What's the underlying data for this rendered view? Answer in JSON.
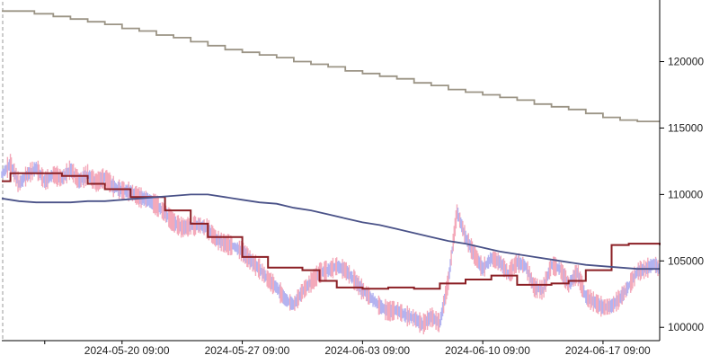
{
  "chart_data": {
    "type": "line",
    "x_tick_labels": [
      "2024-05-20 09:00",
      "2024-05-27 09:00",
      "2024-06-03 09:00",
      "2024-06-10 09:00",
      "2024-06-17 09:00"
    ],
    "y_tick_labels": [
      "100000",
      "105000",
      "110000",
      "115000",
      "120000"
    ],
    "x_tick_days": [
      7,
      14,
      21,
      28,
      35
    ],
    "x_unlabeled_tick_days": [
      2.5
    ],
    "y_ticks": [
      100000,
      105000,
      110000,
      115000,
      120000
    ],
    "xlim_days": [
      0,
      38.3
    ],
    "ylim": [
      99000,
      124500
    ],
    "grid": false,
    "legend": "none",
    "colors": {
      "price_up": "#f4a9ba",
      "price_down": "#b3b3f0",
      "upper_step": "#9b9485",
      "red_step": "#8b1f24",
      "blue_line": "#4a5288",
      "axis": "#000000",
      "start_marker": "#999999"
    },
    "series": [
      {
        "style": "step",
        "color_key": "upper_step",
        "points": [
          [
            0,
            123800
          ],
          [
            1,
            123800
          ],
          [
            1.9,
            123600
          ],
          [
            3,
            123400
          ],
          [
            4,
            123200
          ],
          [
            5,
            123000
          ],
          [
            6,
            122800
          ],
          [
            7,
            122500
          ],
          [
            8,
            122300
          ],
          [
            9,
            122000
          ],
          [
            10,
            121800
          ],
          [
            11,
            121500
          ],
          [
            12,
            121200
          ],
          [
            13,
            120900
          ],
          [
            14,
            120700
          ],
          [
            15,
            120500
          ],
          [
            16,
            120300
          ],
          [
            17,
            120000
          ],
          [
            18,
            119800
          ],
          [
            19,
            119600
          ],
          [
            20,
            119300
          ],
          [
            21,
            119100
          ],
          [
            22,
            118900
          ],
          [
            23,
            118700
          ],
          [
            24,
            118400
          ],
          [
            25,
            118200
          ],
          [
            26,
            117900
          ],
          [
            27,
            117700
          ],
          [
            28,
            117500
          ],
          [
            29,
            117300
          ],
          [
            30,
            117100
          ],
          [
            31,
            116800
          ],
          [
            32,
            116600
          ],
          [
            33,
            116400
          ],
          [
            34,
            116100
          ],
          [
            35,
            115800
          ],
          [
            36,
            115600
          ],
          [
            37,
            115500
          ],
          [
            38.3,
            115500
          ]
        ]
      },
      {
        "style": "step",
        "color_key": "red_step",
        "points": [
          [
            0,
            111000
          ],
          [
            0.5,
            111600
          ],
          [
            2,
            111600
          ],
          [
            3.5,
            111400
          ],
          [
            5,
            110800
          ],
          [
            6,
            110400
          ],
          [
            7.5,
            109800
          ],
          [
            9.5,
            108800
          ],
          [
            11,
            107800
          ],
          [
            12,
            106800
          ],
          [
            14,
            105300
          ],
          [
            15.5,
            104500
          ],
          [
            17.5,
            104300
          ],
          [
            18.5,
            103500
          ],
          [
            19.5,
            103000
          ],
          [
            21,
            102900
          ],
          [
            22.5,
            103000
          ],
          [
            24,
            102900
          ],
          [
            25.5,
            103300
          ],
          [
            27,
            103600
          ],
          [
            28.5,
            103900
          ],
          [
            30,
            103200
          ],
          [
            32,
            103300
          ],
          [
            33,
            103500
          ],
          [
            34,
            104300
          ],
          [
            35.5,
            106200
          ],
          [
            36.5,
            106300
          ],
          [
            38.3,
            106200
          ]
        ]
      },
      {
        "style": "line",
        "color_key": "blue_line",
        "points": [
          [
            0,
            109700
          ],
          [
            1,
            109500
          ],
          [
            2,
            109400
          ],
          [
            3,
            109400
          ],
          [
            4,
            109400
          ],
          [
            5,
            109500
          ],
          [
            6,
            109500
          ],
          [
            7,
            109600
          ],
          [
            8,
            109700
          ],
          [
            9,
            109800
          ],
          [
            10,
            109900
          ],
          [
            11,
            110000
          ],
          [
            12,
            110000
          ],
          [
            13,
            109800
          ],
          [
            14,
            109600
          ],
          [
            15,
            109400
          ],
          [
            16,
            109300
          ],
          [
            17,
            109000
          ],
          [
            18,
            108800
          ],
          [
            19,
            108500
          ],
          [
            20,
            108200
          ],
          [
            21,
            107900
          ],
          [
            22,
            107700
          ],
          [
            23,
            107400
          ],
          [
            24,
            107100
          ],
          [
            25,
            106800
          ],
          [
            26,
            106500
          ],
          [
            27,
            106300
          ],
          [
            28,
            106000
          ],
          [
            29,
            105700
          ],
          [
            30,
            105500
          ],
          [
            31,
            105300
          ],
          [
            32,
            105100
          ],
          [
            33,
            104900
          ],
          [
            34,
            104700
          ],
          [
            35,
            104600
          ],
          [
            36,
            104500
          ],
          [
            37,
            104400
          ],
          [
            38.3,
            104400
          ]
        ]
      },
      {
        "style": "candles",
        "color_key": "price",
        "points": [
          [
            0,
            111500
          ],
          [
            0.5,
            112300
          ],
          [
            1,
            110800
          ],
          [
            1.5,
            111500
          ],
          [
            2,
            112000
          ],
          [
            2.5,
            111000
          ],
          [
            3,
            111500
          ],
          [
            3.5,
            111200
          ],
          [
            4,
            111900
          ],
          [
            4.5,
            111000
          ],
          [
            5,
            111500
          ],
          [
            5.5,
            110900
          ],
          [
            6,
            111300
          ],
          [
            6.5,
            110600
          ],
          [
            7,
            110300
          ],
          [
            7.5,
            110200
          ],
          [
            8,
            109800
          ],
          [
            8.5,
            109600
          ],
          [
            9,
            109200
          ],
          [
            9.5,
            108600
          ],
          [
            10,
            107900
          ],
          [
            10.5,
            107500
          ],
          [
            11,
            107600
          ],
          [
            11.5,
            107700
          ],
          [
            12,
            107400
          ],
          [
            12.5,
            106600
          ],
          [
            13,
            106300
          ],
          [
            13.5,
            106100
          ],
          [
            14,
            105700
          ],
          [
            14.5,
            105000
          ],
          [
            15,
            104400
          ],
          [
            15.5,
            103600
          ],
          [
            16,
            103000
          ],
          [
            16.5,
            102100
          ],
          [
            17,
            101700
          ],
          [
            17.5,
            102700
          ],
          [
            18,
            103400
          ],
          [
            18.5,
            104100
          ],
          [
            19,
            104300
          ],
          [
            19.5,
            104600
          ],
          [
            20,
            104300
          ],
          [
            20.5,
            103600
          ],
          [
            21,
            102800
          ],
          [
            21.5,
            102200
          ],
          [
            22,
            101600
          ],
          [
            22.5,
            101200
          ],
          [
            23,
            101300
          ],
          [
            23.5,
            100900
          ],
          [
            24,
            100700
          ],
          [
            24.5,
            100200
          ],
          [
            25,
            100800
          ],
          [
            25.5,
            100300
          ],
          [
            26,
            103500
          ],
          [
            26.5,
            108700
          ],
          [
            27,
            106800
          ],
          [
            27.5,
            105500
          ],
          [
            28,
            104400
          ],
          [
            28.5,
            105200
          ],
          [
            29,
            104900
          ],
          [
            29.5,
            104000
          ],
          [
            30,
            104900
          ],
          [
            30.5,
            104600
          ],
          [
            31,
            103000
          ],
          [
            31.5,
            102800
          ],
          [
            32,
            104700
          ],
          [
            32.5,
            104400
          ],
          [
            33,
            103200
          ],
          [
            33.5,
            104100
          ],
          [
            34,
            102300
          ],
          [
            34.5,
            101900
          ],
          [
            35,
            101500
          ],
          [
            35.5,
            101600
          ],
          [
            36,
            102200
          ],
          [
            36.5,
            103100
          ],
          [
            37,
            104200
          ],
          [
            37.5,
            104400
          ],
          [
            38,
            104800
          ],
          [
            38.3,
            104300
          ]
        ]
      }
    ]
  }
}
